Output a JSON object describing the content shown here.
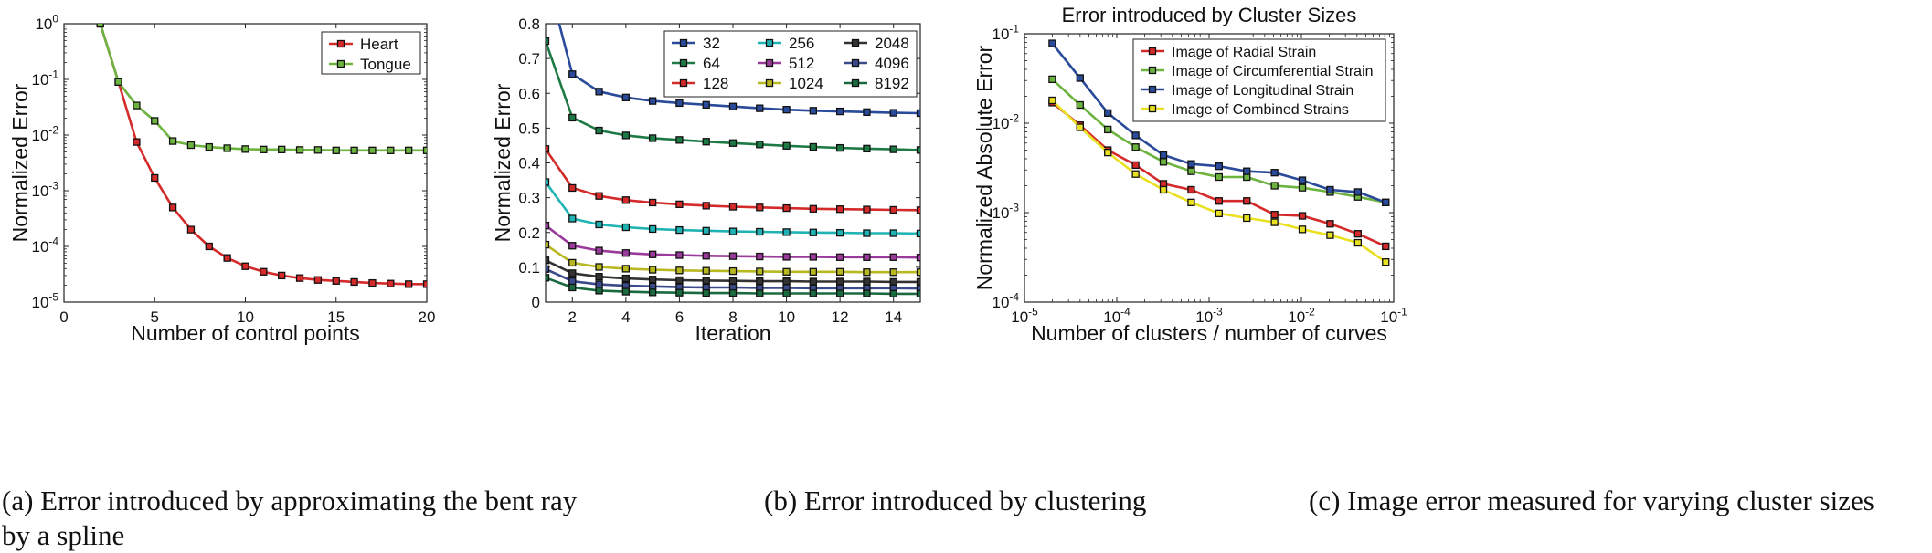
{
  "chart_data": [
    {
      "type": "line",
      "panel": "a",
      "title": "",
      "xlabel": "Number of control points",
      "ylabel": "Normalized Error",
      "x_scale": "linear",
      "y_scale": "log",
      "xlim": [
        0,
        20
      ],
      "ylim": [
        1e-05,
        1
      ],
      "xticks": [
        0,
        5,
        10,
        15,
        20
      ],
      "xtick_labels": [
        "0",
        "5",
        "10",
        "15",
        "20"
      ],
      "yticks": [
        1e-05,
        0.0001,
        0.001,
        0.01,
        0.1,
        1
      ],
      "ytick_labels": [
        {
          "base": "10",
          "exp": "-5"
        },
        {
          "base": "10",
          "exp": "-4"
        },
        {
          "base": "10",
          "exp": "-3"
        },
        {
          "base": "10",
          "exp": "-2"
        },
        {
          "base": "10",
          "exp": "-1"
        },
        {
          "base": "10",
          "exp": "0"
        }
      ],
      "legend_position": "top-right",
      "x": [
        2,
        3,
        4,
        5,
        6,
        7,
        8,
        9,
        10,
        11,
        12,
        13,
        14,
        15,
        16,
        17,
        18,
        19,
        20
      ],
      "series": [
        {
          "name": "Heart",
          "color": "#d42a2a",
          "values": [
            1.0,
            0.09,
            0.0075,
            0.0017,
            0.0005,
            0.0002,
            0.0001,
            6.2e-05,
            4.4e-05,
            3.5e-05,
            3e-05,
            2.7e-05,
            2.5e-05,
            2.4e-05,
            2.3e-05,
            2.2e-05,
            2.15e-05,
            2.1e-05,
            2.1e-05
          ]
        },
        {
          "name": "Tongue",
          "color": "#6db33f",
          "values": [
            1.0,
            0.09,
            0.034,
            0.018,
            0.0078,
            0.0066,
            0.0061,
            0.0058,
            0.0056,
            0.0055,
            0.0055,
            0.0054,
            0.0054,
            0.0053,
            0.0053,
            0.0053,
            0.0053,
            0.0053,
            0.0053
          ]
        }
      ]
    },
    {
      "type": "line",
      "panel": "b",
      "title": "",
      "xlabel": "Iteration",
      "ylabel": "Normalized Error",
      "x_scale": "linear",
      "y_scale": "linear",
      "xlim": [
        1,
        15
      ],
      "ylim": [
        0,
        0.8
      ],
      "xticks": [
        2,
        4,
        6,
        8,
        10,
        12,
        14
      ],
      "xtick_labels": [
        "2",
        "4",
        "6",
        "8",
        "10",
        "12",
        "14"
      ],
      "yticks": [
        0,
        0.1,
        0.2,
        0.3,
        0.4,
        0.5,
        0.6,
        0.7,
        0.8
      ],
      "ytick_labels": [
        "0",
        "0.1",
        "0.2",
        "0.3",
        "0.4",
        "0.5",
        "0.6",
        "0.7",
        "0.8"
      ],
      "legend_position": "top-right",
      "legend_columns": 3,
      "x": [
        1,
        2,
        3,
        4,
        5,
        6,
        7,
        8,
        9,
        10,
        11,
        12,
        13,
        14,
        15
      ],
      "series": [
        {
          "name": "32",
          "color": "#2a4a9a",
          "values": [
            0.95,
            0.655,
            0.605,
            0.588,
            0.578,
            0.572,
            0.567,
            0.562,
            0.557,
            0.553,
            0.55,
            0.548,
            0.546,
            0.544,
            0.543
          ]
        },
        {
          "name": "64",
          "color": "#1e7a45",
          "values": [
            0.75,
            0.53,
            0.493,
            0.479,
            0.471,
            0.466,
            0.461,
            0.457,
            0.453,
            0.449,
            0.446,
            0.443,
            0.441,
            0.439,
            0.437
          ]
        },
        {
          "name": "128",
          "color": "#d42a2a",
          "values": [
            0.44,
            0.328,
            0.305,
            0.293,
            0.286,
            0.281,
            0.277,
            0.274,
            0.272,
            0.27,
            0.268,
            0.267,
            0.266,
            0.265,
            0.264
          ]
        },
        {
          "name": "256",
          "color": "#1fb3b3",
          "values": [
            0.345,
            0.24,
            0.223,
            0.215,
            0.21,
            0.207,
            0.205,
            0.203,
            0.202,
            0.201,
            0.2,
            0.199,
            0.198,
            0.198,
            0.197
          ]
        },
        {
          "name": "512",
          "color": "#9a3a9a",
          "values": [
            0.22,
            0.162,
            0.148,
            0.141,
            0.137,
            0.135,
            0.133,
            0.132,
            0.131,
            0.13,
            0.13,
            0.129,
            0.129,
            0.129,
            0.128
          ]
        },
        {
          "name": "1024",
          "color": "#b8b820",
          "values": [
            0.165,
            0.113,
            0.101,
            0.096,
            0.093,
            0.091,
            0.09,
            0.089,
            0.088,
            0.087,
            0.087,
            0.087,
            0.086,
            0.086,
            0.086
          ]
        },
        {
          "name": "2048",
          "color": "#333333",
          "values": [
            0.12,
            0.083,
            0.073,
            0.068,
            0.065,
            0.063,
            0.062,
            0.061,
            0.06,
            0.06,
            0.059,
            0.059,
            0.059,
            0.058,
            0.058
          ]
        },
        {
          "name": "4096",
          "color": "#3a4a8a",
          "values": [
            0.095,
            0.06,
            0.051,
            0.047,
            0.045,
            0.043,
            0.042,
            0.042,
            0.041,
            0.041,
            0.04,
            0.04,
            0.04,
            0.04,
            0.039
          ]
        },
        {
          "name": "8192",
          "color": "#1a6a40",
          "values": [
            0.07,
            0.042,
            0.033,
            0.03,
            0.028,
            0.027,
            0.026,
            0.026,
            0.025,
            0.025,
            0.025,
            0.025,
            0.025,
            0.024,
            0.024
          ]
        }
      ]
    },
    {
      "type": "line",
      "panel": "c",
      "title": "Error introduced by Cluster Sizes",
      "xlabel": "Number of clusters / number of curves",
      "ylabel": "Normalized Absolute Error",
      "x_scale": "log",
      "y_scale": "log",
      "xlim": [
        1e-05,
        0.1
      ],
      "ylim": [
        0.0001,
        0.1
      ],
      "xticks": [
        1e-05,
        0.0001,
        0.001,
        0.01,
        0.1
      ],
      "xtick_labels": [
        {
          "base": "10",
          "exp": "-5"
        },
        {
          "base": "10",
          "exp": "-4"
        },
        {
          "base": "10",
          "exp": "-3"
        },
        {
          "base": "10",
          "exp": "-2"
        },
        {
          "base": "10",
          "exp": "-1"
        }
      ],
      "yticks": [
        0.0001,
        0.001,
        0.01,
        0.1
      ],
      "ytick_labels": [
        {
          "base": "10",
          "exp": "-4"
        },
        {
          "base": "10",
          "exp": "-3"
        },
        {
          "base": "10",
          "exp": "-2"
        },
        {
          "base": "10",
          "exp": "-1"
        }
      ],
      "legend_position": "top-right",
      "x": [
        2e-05,
        4e-05,
        8e-05,
        0.00016,
        0.00032,
        0.00064,
        0.00128,
        0.00256,
        0.00512,
        0.01024,
        0.02048,
        0.04096,
        0.08192
      ],
      "series": [
        {
          "name": "Image of Radial Strain",
          "color": "#d42a2a",
          "values": [
            0.017,
            0.0095,
            0.005,
            0.0034,
            0.0021,
            0.0018,
            0.00135,
            0.00135,
            0.00095,
            0.00092,
            0.00075,
            0.00058,
            0.00042
          ]
        },
        {
          "name": "Image of Circumferential Strain",
          "color": "#6db33f",
          "values": [
            0.031,
            0.016,
            0.0085,
            0.0054,
            0.0037,
            0.0029,
            0.0025,
            0.0025,
            0.002,
            0.0019,
            0.0017,
            0.0015,
            0.0013
          ]
        },
        {
          "name": "Image of Longitudinal Strain",
          "color": "#2a4a9a",
          "values": [
            0.078,
            0.032,
            0.013,
            0.0073,
            0.0044,
            0.0035,
            0.0033,
            0.0029,
            0.0028,
            0.0023,
            0.0018,
            0.0017,
            0.0013
          ]
        },
        {
          "name": "Image of Combined Strains",
          "color": "#e8e020",
          "values": [
            0.018,
            0.009,
            0.0047,
            0.0027,
            0.0018,
            0.0013,
            0.00098,
            0.00087,
            0.00078,
            0.00065,
            0.00056,
            0.00046,
            0.00028
          ]
        }
      ]
    }
  ],
  "captions": [
    {
      "label": "(a)",
      "text": "Error introduced by approximating the bent ray",
      "text2": "by a spline"
    },
    {
      "label": "(b)",
      "text": "Error introduced by clustering"
    },
    {
      "label": "(c)",
      "text": "Image error measured for varying cluster sizes"
    }
  ]
}
